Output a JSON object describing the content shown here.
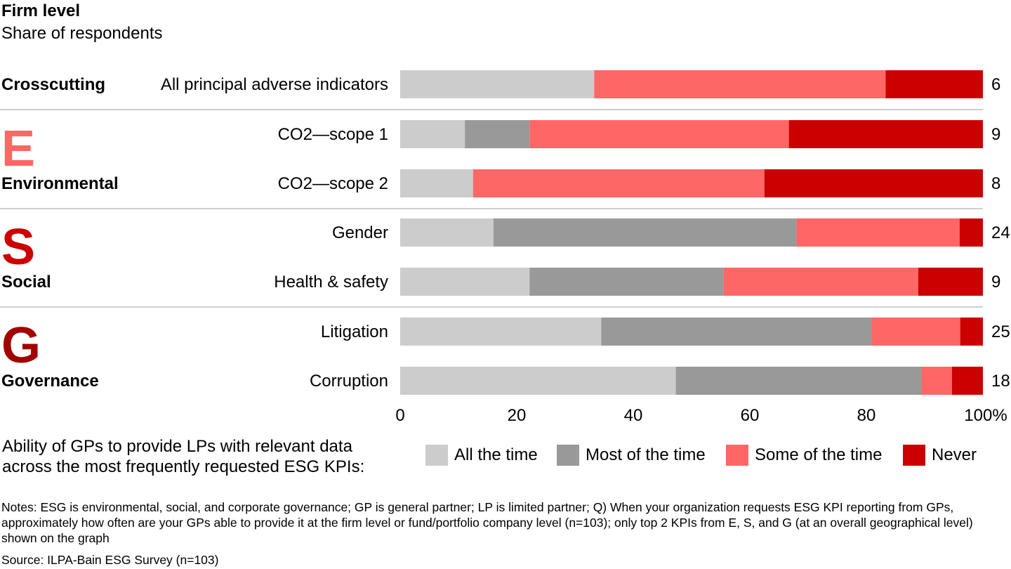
{
  "title": "Firm level",
  "subtitle": "Share of respondents",
  "chart_data": {
    "type": "bar",
    "orientation": "horizontal",
    "stacked": true,
    "xlim": [
      0,
      100
    ],
    "x_ticks": [
      "0",
      "20",
      "40",
      "60",
      "80",
      "100%"
    ],
    "groups": [
      {
        "name": "Crosscutting",
        "letter": "",
        "letter_color": "",
        "categories": [
          "All principal adverse indicators"
        ]
      },
      {
        "name": "Environmental",
        "letter": "E",
        "letter_color": "#FF6666",
        "categories": [
          "CO2—scope 1",
          "CO2—scope 2"
        ]
      },
      {
        "name": "Social",
        "letter": "S",
        "letter_color": "#CC0000",
        "categories": [
          "Gender",
          "Health & safety"
        ]
      },
      {
        "name": "Governance",
        "letter": "G",
        "letter_color": "#A30000",
        "categories": [
          "Litigation",
          "Corruption"
        ]
      }
    ],
    "categories": [
      "All principal adverse indicators",
      "CO2—scope 1",
      "CO2—scope 2",
      "Gender",
      "Health & safety",
      "Litigation",
      "Corruption"
    ],
    "counts": [
      "6",
      "9",
      "8",
      "24",
      "9",
      "25",
      "18"
    ],
    "series": [
      {
        "name": "All the time",
        "color": "#CCCCCC",
        "values": [
          33.3,
          11.1,
          12.5,
          16.0,
          22.2,
          34.5,
          47.3
        ]
      },
      {
        "name": "Most of the time",
        "color": "#999999",
        "values": [
          0,
          11.1,
          0,
          52.0,
          33.3,
          46.4,
          42.1
        ]
      },
      {
        "name": "Some of the time",
        "color": "#FF6666",
        "values": [
          50.0,
          44.5,
          50.0,
          28.0,
          33.4,
          15.2,
          5.3
        ]
      },
      {
        "name": "Never",
        "color": "#CC0000",
        "values": [
          16.7,
          33.3,
          37.5,
          4.0,
          11.1,
          3.9,
          5.3
        ]
      }
    ],
    "grid": false,
    "legend_position": "bottom"
  },
  "legend": {
    "description": "Ability of GPs to provide LPs with relevant data across the most frequently requested ESG KPIs:",
    "items": [
      {
        "label": "All the time",
        "color": "#CCCCCC"
      },
      {
        "label": "Most of the time",
        "color": "#999999"
      },
      {
        "label": "Some of the time",
        "color": "#FF6666"
      },
      {
        "label": "Never",
        "color": "#CC0000"
      }
    ]
  },
  "notes": "Notes: ESG is environmental, social, and corporate governance; GP is general partner; LP is limited partner; Q) When your organization requests ESG KPI reporting from GPs, approximately how often are your GPs able to provide it at the firm level or fund/portfolio company level (n=103); only top 2 KPIs from E, S, and G (at an overall geographical level) shown on the graph",
  "source": "Source: ILPA-Bain ESG Survey (n=103)"
}
